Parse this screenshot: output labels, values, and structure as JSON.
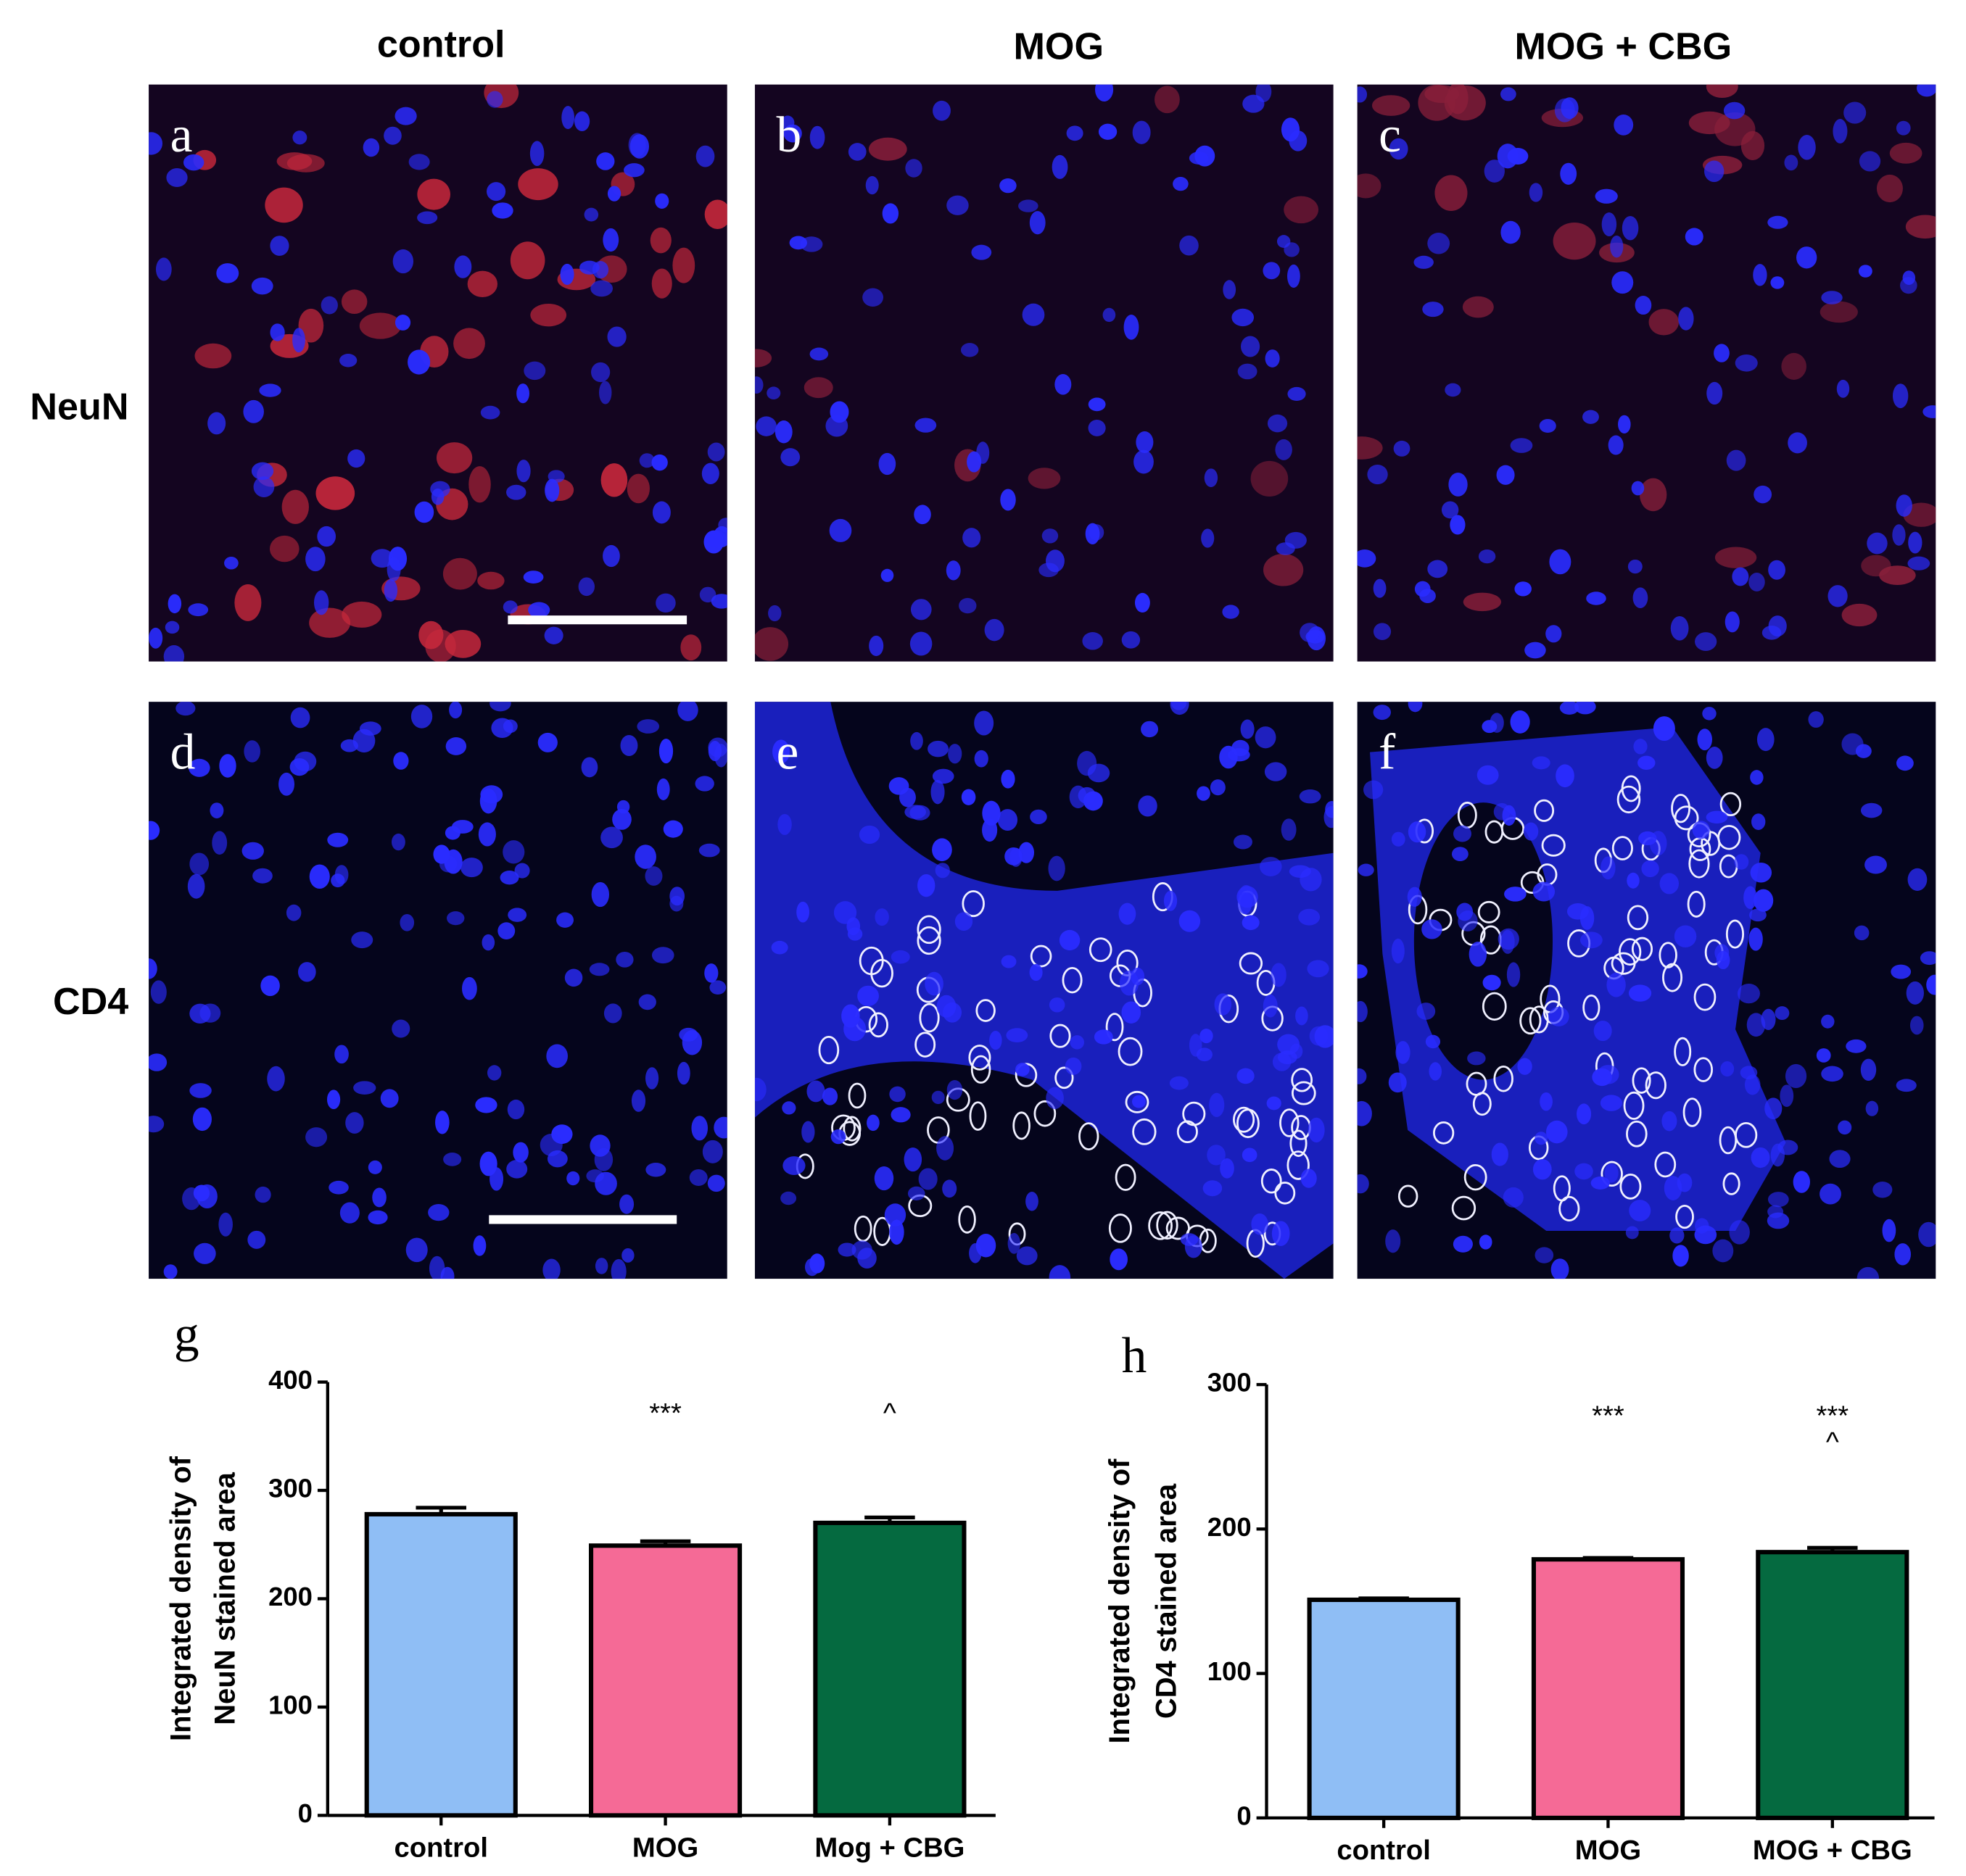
{
  "columns": [
    "control",
    "MOG",
    "MOG + CBG"
  ],
  "rows": [
    "NeuN",
    "CD4"
  ],
  "panels": [
    {
      "letter": "a"
    },
    {
      "letter": "b"
    },
    {
      "letter": "c"
    },
    {
      "letter": "d"
    },
    {
      "letter": "e"
    },
    {
      "letter": "f"
    }
  ],
  "chart_data": [
    {
      "type": "bar",
      "letter": "g",
      "ylabel": [
        "Integrated density of",
        "NeuN stained area"
      ],
      "categories": [
        "control",
        "MOG",
        "Mog + CBG"
      ],
      "values": [
        278,
        249,
        270
      ],
      "errors": [
        6,
        4,
        5
      ],
      "colors": [
        "#8fbef5",
        "#f56a96",
        "#056a40"
      ],
      "ylim": [
        0,
        400
      ],
      "yticks": [
        0,
        100,
        200,
        300,
        400
      ],
      "annotations": [
        {
          "category": "MOG",
          "text": "***"
        },
        {
          "category": "Mog + CBG",
          "text": "^"
        }
      ]
    },
    {
      "type": "bar",
      "letter": "h",
      "ylabel": [
        "Integrated density of",
        "CD4 stained area"
      ],
      "categories": [
        "control",
        "MOG",
        "MOG + CBG"
      ],
      "values": [
        151,
        179,
        184
      ],
      "errors": [
        1,
        1,
        3
      ],
      "colors": [
        "#8fbef5",
        "#f56a96",
        "#056a40"
      ],
      "ylim": [
        0,
        300
      ],
      "yticks": [
        0,
        100,
        200,
        300
      ],
      "annotations": [
        {
          "category": "MOG",
          "text": "***"
        },
        {
          "category": "MOG + CBG",
          "text": "***"
        },
        {
          "category": "MOG + CBG",
          "text": "^"
        }
      ]
    }
  ]
}
